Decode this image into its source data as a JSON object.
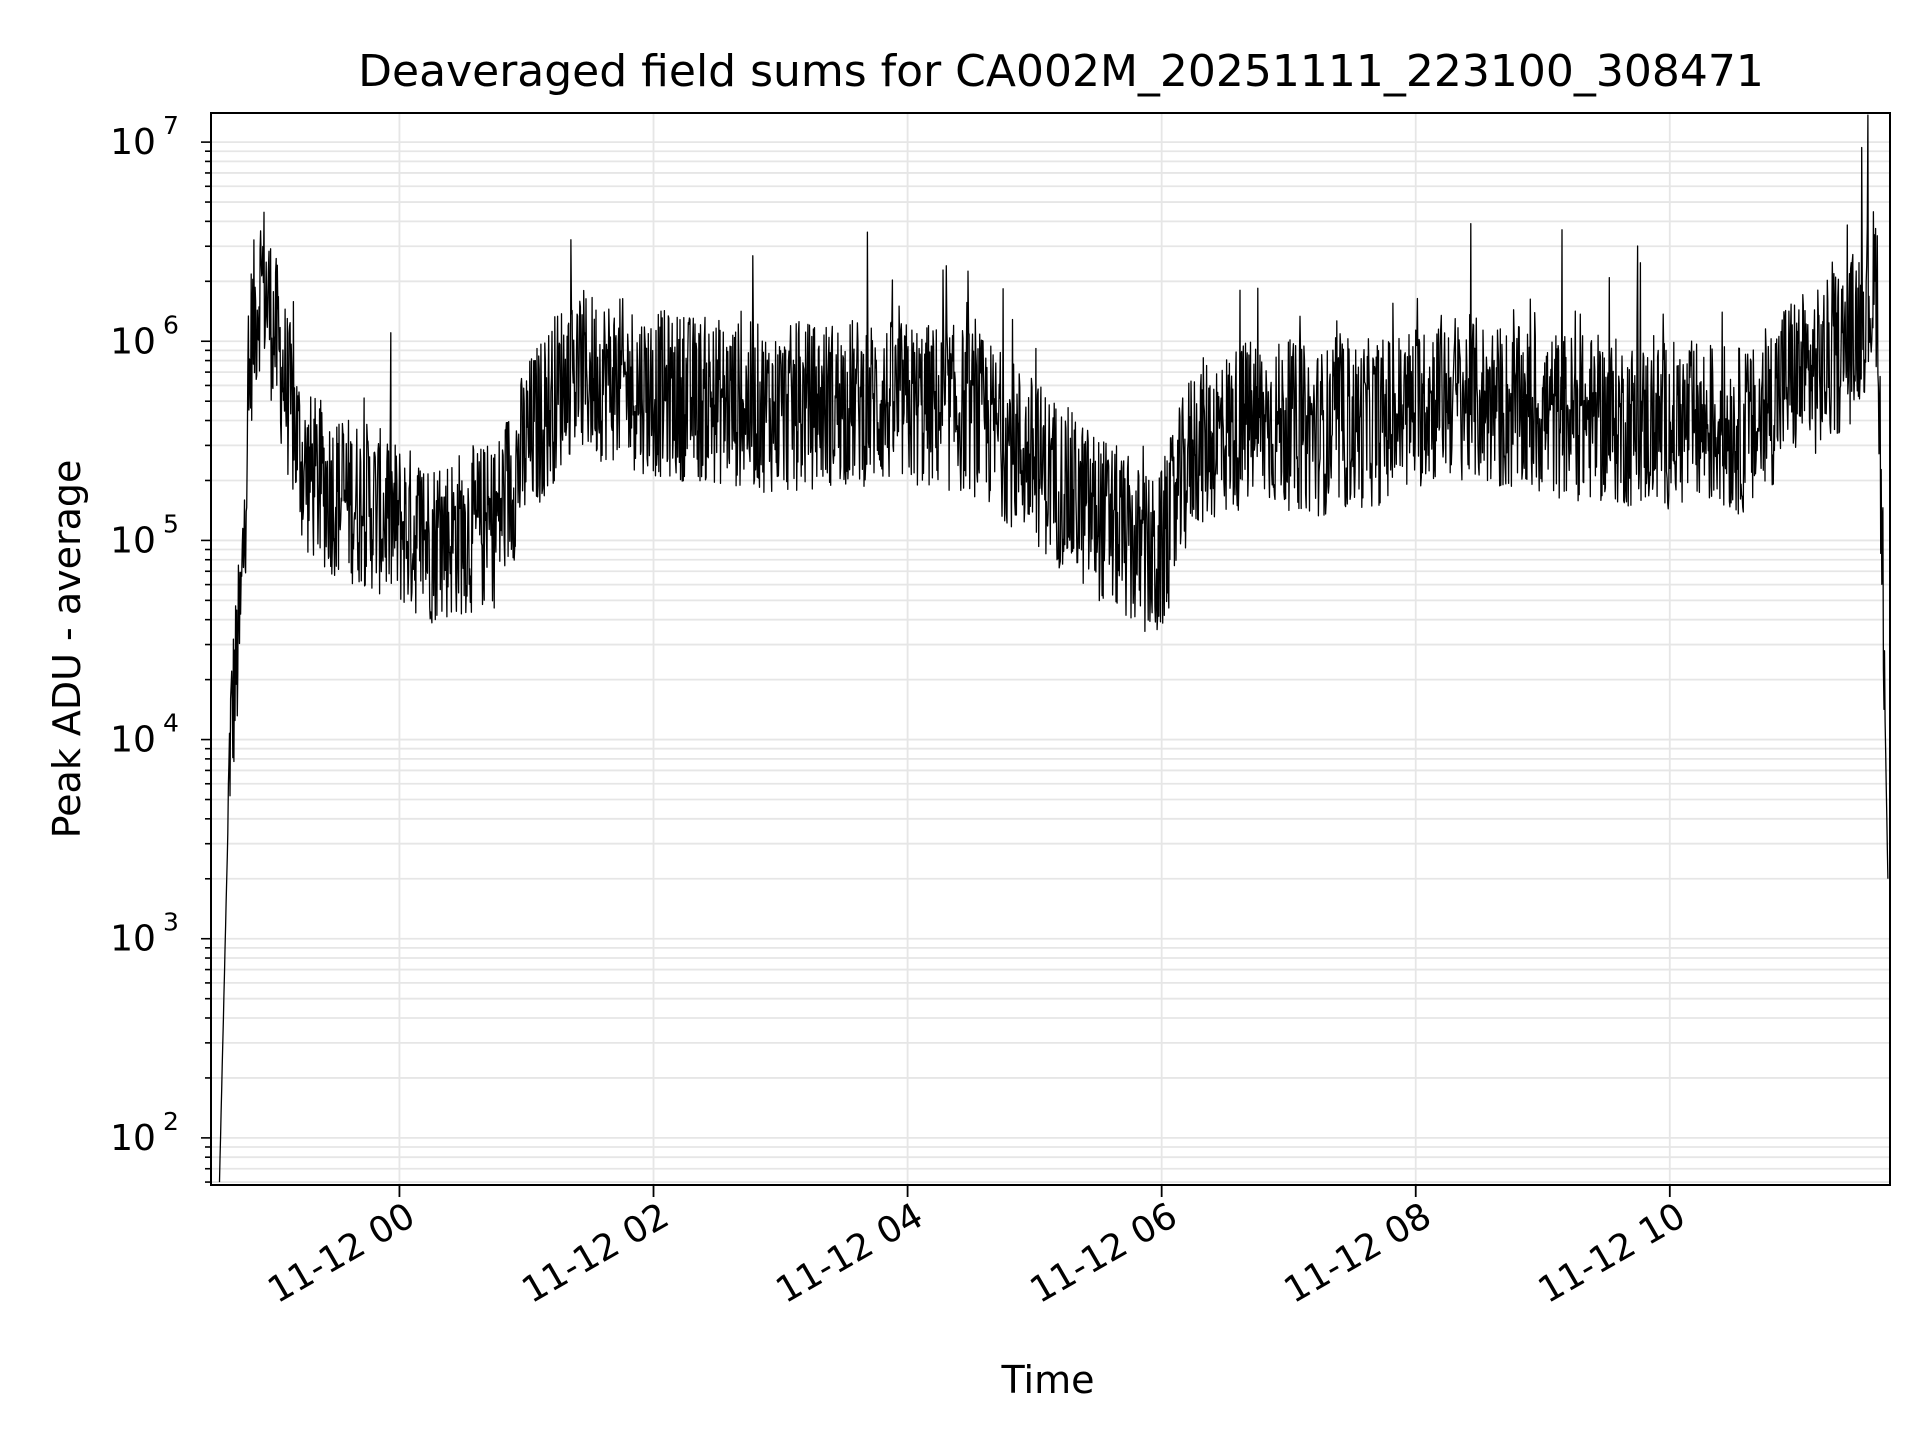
{
  "chart_data": {
    "type": "line",
    "title": "Deaveraged field sums for CA002M_20251111_223100_308471",
    "xlabel": "Time",
    "ylabel": "Peak ADU - average",
    "yscale": "log",
    "ylim": [
      58,
      14000000
    ],
    "xlim": [
      "2025-11-11 22:31",
      "2025-11-12 11:44"
    ],
    "grid": true,
    "legend": "none",
    "line_color": "#000000",
    "grid_color": "#e6e6e6",
    "x_ticks": [
      {
        "t": "2025-11-12 00:00",
        "label": "11-12 00"
      },
      {
        "t": "2025-11-12 02:00",
        "label": "11-12 02"
      },
      {
        "t": "2025-11-12 04:00",
        "label": "11-12 04"
      },
      {
        "t": "2025-11-12 06:00",
        "label": "11-12 06"
      },
      {
        "t": "2025-11-12 08:00",
        "label": "11-12 08"
      },
      {
        "t": "2025-11-12 10:00",
        "label": "11-12 10"
      }
    ],
    "y_ticks": [
      {
        "value": 100,
        "base": "10",
        "exp": "2"
      },
      {
        "value": 1000,
        "base": "10",
        "exp": "3"
      },
      {
        "value": 10000,
        "base": "10",
        "exp": "4"
      },
      {
        "value": 100000,
        "base": "10",
        "exp": "5"
      },
      {
        "value": 1000000,
        "base": "10",
        "exp": "6"
      },
      {
        "value": 10000000,
        "base": "10",
        "exp": "7"
      }
    ],
    "series": [
      {
        "x": [
          "2025-11-11 22:35",
          "2025-11-11 22:40",
          "2025-11-11 22:45",
          "2025-11-11 22:50",
          "2025-11-11 22:55",
          "2025-11-11 23:05",
          "2025-11-11 23:15",
          "2025-11-11 23:30",
          "2025-11-11 23:45",
          "2025-11-12 00:00",
          "2025-11-12 00:15",
          "2025-11-12 00:30",
          "2025-11-12 00:45",
          "2025-11-12 01:00",
          "2025-11-12 01:20",
          "2025-11-12 01:40",
          "2025-11-12 02:00",
          "2025-11-12 02:30",
          "2025-11-12 03:00",
          "2025-11-12 03:30",
          "2025-11-12 04:00",
          "2025-11-12 04:30",
          "2025-11-12 05:00",
          "2025-11-12 05:20",
          "2025-11-12 05:40",
          "2025-11-12 05:58",
          "2025-11-12 06:15",
          "2025-11-12 06:45",
          "2025-11-12 07:15",
          "2025-11-12 07:45",
          "2025-11-12 08:15",
          "2025-11-12 08:45",
          "2025-11-12 09:15",
          "2025-11-12 09:45",
          "2025-11-12 10:15",
          "2025-11-12 10:40",
          "2025-11-12 10:55",
          "2025-11-12 11:10",
          "2025-11-12 11:25",
          "2025-11-12 11:38",
          "2025-11-12 11:43"
        ],
        "y": [
          60,
          10000,
          40000,
          1000000,
          2200000,
          700000,
          220000,
          170000,
          150000,
          120000,
          100000,
          110000,
          120000,
          300000,
          700000,
          650000,
          550000,
          500000,
          450000,
          500000,
          480000,
          450000,
          250000,
          160000,
          110000,
          75000,
          300000,
          400000,
          350000,
          400000,
          550000,
          450000,
          420000,
          380000,
          380000,
          350000,
          650000,
          700000,
          1000000,
          2000000,
          2000
        ]
      }
    ]
  }
}
